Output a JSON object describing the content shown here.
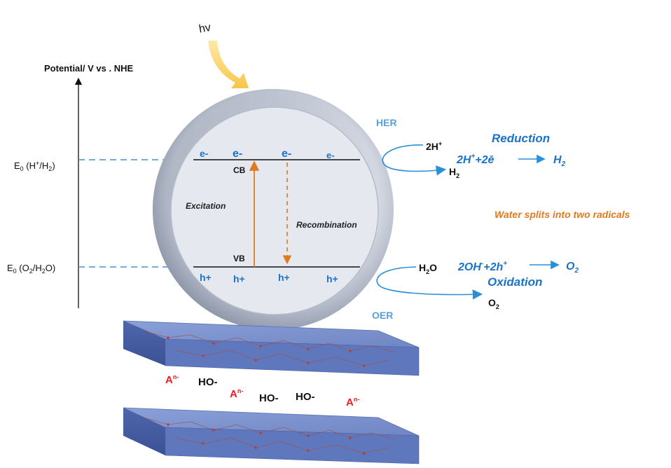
{
  "light": {
    "label": "hv"
  },
  "axis": {
    "label": "Potential/ V vs . NHE"
  },
  "levels": {
    "h_level": {
      "prefix": "E",
      "sub": "0",
      "rest_open": " (H",
      "sup": "+",
      "mid": "/H",
      "sub2": "2",
      "close": ")"
    },
    "o_level": {
      "prefix": "E",
      "sub": "0",
      "rest_open": " (O",
      "sub2": "2",
      "mid": "/H",
      "sub3": "2",
      "close": "O)"
    }
  },
  "bands": {
    "cb_label": "CB",
    "vb_label": "VB",
    "electrons": [
      "e-",
      "e-",
      "e-",
      "e-"
    ],
    "holes": [
      "h+",
      "h+",
      "h+",
      "h+"
    ],
    "excitation_label": "Excitation",
    "recombination_label": "Recombination"
  },
  "her": {
    "label": "HER",
    "reactant": {
      "main": "2H",
      "sup": "+"
    },
    "product": {
      "main": "H",
      "sub": "2"
    },
    "title": "Reduction",
    "eq_lhs": {
      "a": "2H",
      "sup": "+",
      "b": "+2ē"
    },
    "eq_rhs": {
      "main": "H",
      "sub": "2"
    }
  },
  "oer": {
    "label": "OER",
    "reactant": {
      "main": "H",
      "sub": "2",
      "end": "O"
    },
    "product": {
      "main": "O",
      "sub": "2"
    },
    "title": "Oxidation",
    "eq_lhs": {
      "a": "2OH",
      "sup1": "-",
      "b": "+2h",
      "sup2": "+"
    },
    "eq_rhs": {
      "main": "O",
      "sub": "2"
    }
  },
  "note": "Water splits into two radicals",
  "interlayer": {
    "anion": {
      "main": "A",
      "sup": "n-"
    },
    "hydroxide": "HO-"
  },
  "colors": {
    "blue_text": "#1a73c9",
    "orange": "#e07a1e",
    "red": "#e62020",
    "sphere_ring": "#9aa3b5",
    "sphere_core": "#e6e8ef",
    "slab": "#6f86c4",
    "her_oer": "#5aa0d6"
  }
}
